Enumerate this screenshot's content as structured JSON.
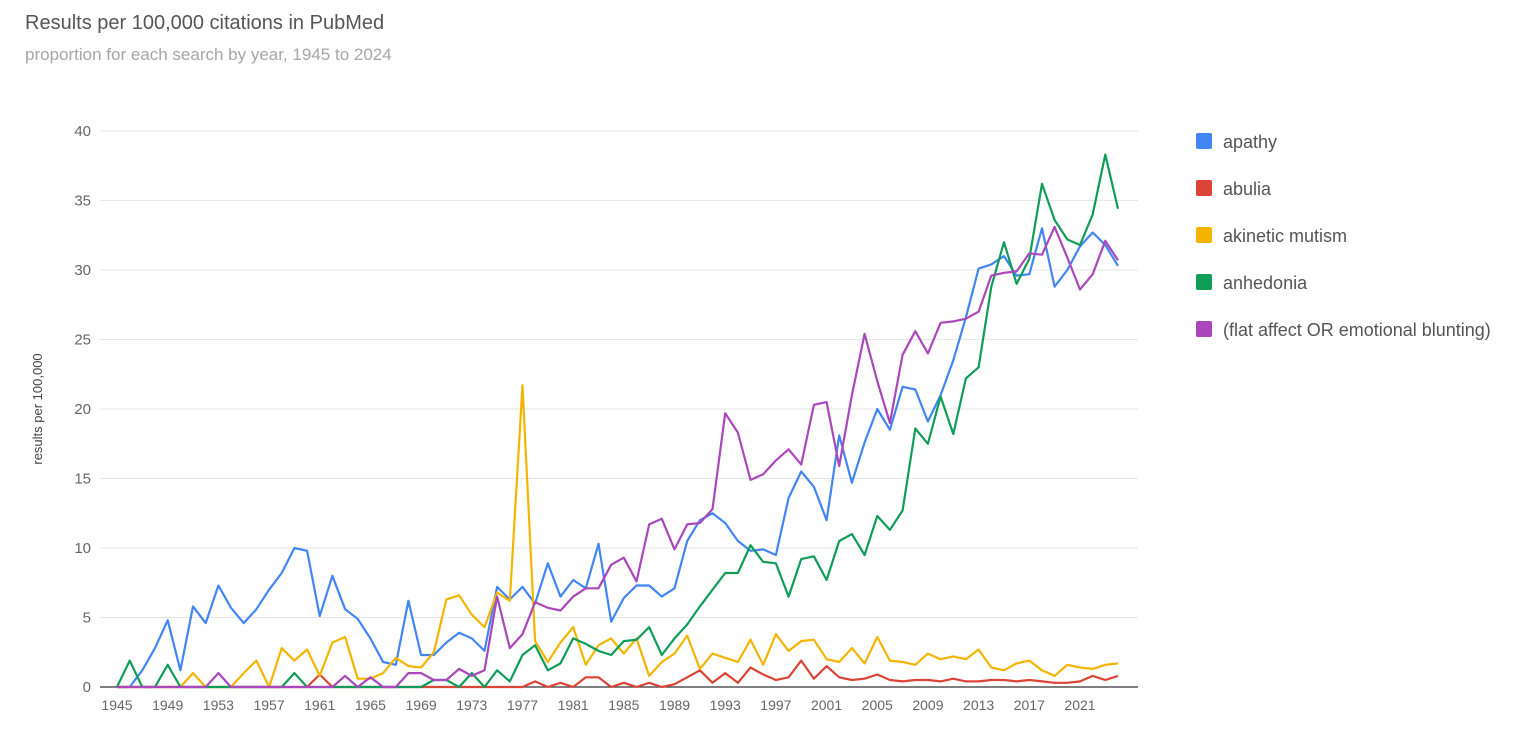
{
  "chart_data": {
    "type": "line",
    "title": "Results per 100,000 citations in PubMed",
    "subtitle": "proportion for each search by year, 1945 to 2024",
    "ylabel": "results per 100,000",
    "xlabel": "",
    "ylim": [
      0,
      40
    ],
    "xlim": [
      1945,
      2024
    ],
    "grid": true,
    "legend_position": "right",
    "y_ticks": [
      0,
      5,
      10,
      15,
      20,
      25,
      30,
      35,
      40
    ],
    "x_ticks": [
      1945,
      1949,
      1953,
      1957,
      1961,
      1965,
      1969,
      1973,
      1977,
      1981,
      1985,
      1989,
      1993,
      1997,
      2001,
      2005,
      2009,
      2013,
      2017,
      2021
    ],
    "x_start": 1945,
    "series": [
      {
        "name": "apathy",
        "color": "#4285f4",
        "values": [
          0,
          0,
          1.2,
          2.8,
          4.8,
          1.2,
          5.8,
          4.6,
          7.3,
          5.7,
          4.6,
          5.6,
          7.0,
          8.2,
          10.0,
          9.8,
          5.1,
          8.0,
          5.6,
          4.9,
          3.5,
          1.8,
          1.6,
          6.2,
          2.3,
          2.3,
          3.2,
          3.9,
          3.5,
          2.6,
          7.2,
          6.3,
          7.2,
          6.0,
          8.9,
          6.5,
          7.7,
          7.1,
          10.3,
          4.7,
          6.4,
          7.3,
          7.3,
          6.5,
          7.1,
          10.5,
          12.0,
          12.5,
          11.8,
          10.5,
          9.8,
          9.9,
          9.5,
          13.6,
          15.5,
          14.4,
          12.0,
          18.1,
          14.7,
          17.6,
          20.0,
          18.5,
          21.6,
          21.4,
          19.1,
          21.0,
          23.5,
          26.6,
          30.1,
          30.4,
          31.0,
          29.6,
          29.7,
          33.0,
          28.8,
          30.0,
          31.7,
          32.7,
          31.8,
          30.3
        ]
      },
      {
        "name": "abulia",
        "color": "#db4437",
        "values": [
          0,
          0,
          0,
          0,
          0,
          0,
          0,
          0,
          0,
          0,
          0,
          0,
          0,
          0,
          0,
          0,
          0.9,
          0,
          0,
          0,
          0,
          0,
          0,
          0,
          0,
          0,
          0,
          0,
          0,
          0,
          0,
          0,
          0,
          0.4,
          0,
          0.3,
          0,
          0.7,
          0.7,
          0,
          0.3,
          0,
          0.3,
          0,
          0.2,
          0.7,
          1.2,
          0.3,
          1.0,
          0.3,
          1.4,
          0.9,
          0.5,
          0.7,
          1.9,
          0.6,
          1.5,
          0.7,
          0.5,
          0.6,
          0.9,
          0.5,
          0.4,
          0.5,
          0.5,
          0.4,
          0.6,
          0.4,
          0.4,
          0.5,
          0.5,
          0.4,
          0.5,
          0.4,
          0.3,
          0.3,
          0.4,
          0.8,
          0.5,
          0.8
        ]
      },
      {
        "name": "akinetic mutism",
        "color": "#f4b400",
        "values": [
          0,
          0,
          0,
          0,
          0,
          0,
          1.0,
          0,
          0,
          0,
          1.0,
          1.9,
          0,
          2.8,
          1.9,
          2.7,
          0.8,
          3.2,
          3.6,
          0.6,
          0.6,
          1.0,
          2.1,
          1.5,
          1.4,
          2.5,
          6.3,
          6.6,
          5.2,
          4.3,
          6.8,
          6.2,
          21.7,
          3.3,
          1.8,
          3.2,
          4.3,
          1.6,
          3.0,
          3.5,
          2.4,
          3.5,
          0.8,
          1.8,
          2.4,
          3.7,
          1.3,
          2.4,
          2.1,
          1.8,
          3.4,
          1.6,
          3.8,
          2.6,
          3.3,
          3.4,
          2.0,
          1.8,
          2.8,
          1.7,
          3.6,
          1.9,
          1.8,
          1.6,
          2.4,
          2.0,
          2.2,
          2.0,
          2.7,
          1.4,
          1.2,
          1.7,
          1.9,
          1.2,
          0.8,
          1.6,
          1.4,
          1.3,
          1.6,
          1.7
        ]
      },
      {
        "name": "anhedonia",
        "color": "#0f9d58",
        "values": [
          0,
          1.9,
          0,
          0,
          1.6,
          0,
          0,
          0,
          0,
          0,
          0,
          0,
          0,
          0,
          1.0,
          0,
          0,
          0,
          0,
          0,
          0,
          0,
          0,
          0,
          0,
          0.5,
          0.5,
          0,
          1.0,
          0,
          1.2,
          0.4,
          2.3,
          3.0,
          1.2,
          1.7,
          3.5,
          3.1,
          2.6,
          2.3,
          3.3,
          3.4,
          4.3,
          2.3,
          3.5,
          4.5,
          5.8,
          7.0,
          8.2,
          8.2,
          10.2,
          9.0,
          8.9,
          6.5,
          9.2,
          9.4,
          7.7,
          10.5,
          11.0,
          9.5,
          12.3,
          11.3,
          12.7,
          18.6,
          17.5,
          20.9,
          18.2,
          22.2,
          23.0,
          28.8,
          32.0,
          29.0,
          30.8,
          36.2,
          33.6,
          32.2,
          31.8,
          34.0,
          38.3,
          34.4
        ]
      },
      {
        "name": "(flat affect OR emotional blunting)",
        "color": "#ab47bc",
        "values": [
          0,
          0,
          0,
          0,
          0,
          0,
          0,
          0,
          1.0,
          0,
          0,
          0,
          0,
          0,
          0,
          0,
          0,
          0,
          0.8,
          0,
          0.7,
          0,
          0,
          1.0,
          1.0,
          0.5,
          0.5,
          1.3,
          0.8,
          1.2,
          6.5,
          2.8,
          3.8,
          6.1,
          5.7,
          5.5,
          6.5,
          7.1,
          7.1,
          8.8,
          9.3,
          7.6,
          11.7,
          12.1,
          9.9,
          11.7,
          11.8,
          12.8,
          19.7,
          18.3,
          14.9,
          15.3,
          16.3,
          17.1,
          16.0,
          20.3,
          20.5,
          15.9,
          21.0,
          25.4,
          22.0,
          19.0,
          23.9,
          25.6,
          24.0,
          26.2,
          26.3,
          26.5,
          27.0,
          29.6,
          29.8,
          29.9,
          31.2,
          31.1,
          33.1,
          30.9,
          28.6,
          29.7,
          32.1,
          30.7
        ]
      }
    ]
  }
}
